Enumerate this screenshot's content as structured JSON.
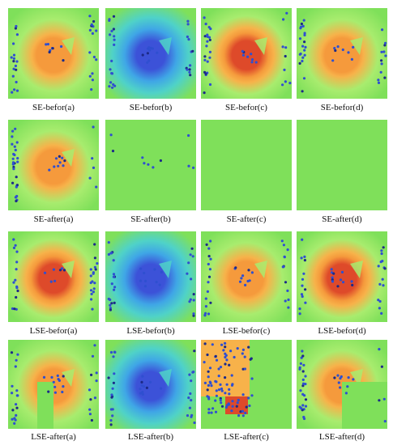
{
  "colors": {
    "green": "#7fe05a",
    "green_light": "#a8ec6e",
    "cyan": "#4fd2c8",
    "blue": "#3c52d8",
    "blue_mid": "#3fa6e6",
    "orange": "#f59a3c",
    "orange_light": "#f7b24a",
    "red": "#de4a2a",
    "dot": "#2f4fd0",
    "dot_dark": "#1c2a88"
  },
  "captions": [
    [
      "SE-befor(a)",
      "SE-befor(b)",
      "SE-befor(c)",
      "SE-befor(d)"
    ],
    [
      "SE-after(a)",
      "SE-after(b)",
      "SE-after(c)",
      "SE-after(d)"
    ],
    [
      "LSE-befor(a)",
      "LSE-befor(b)",
      "LSE-befor(c)",
      "LSE-befor(d)"
    ],
    [
      "LSE-after(a)",
      "LSE-after(b)",
      "LSE-after(c)",
      "LSE-after(d)"
    ]
  ]
}
